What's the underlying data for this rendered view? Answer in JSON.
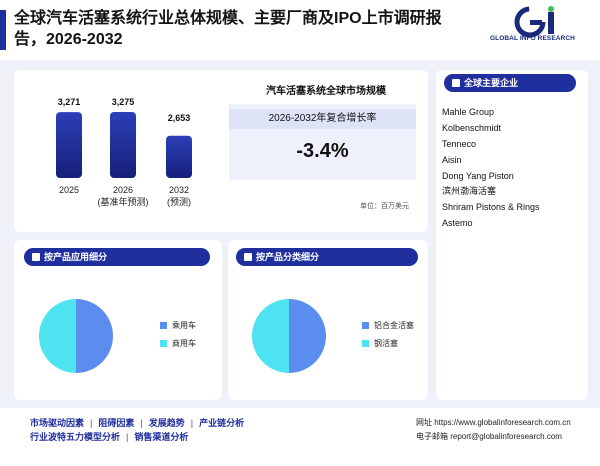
{
  "header": {
    "title": "全球汽车活塞系统行业总体规模、主要厂商及IPO上市调研报告，2026-2032",
    "logo_text": "GLOBAL INFO RESEARCH"
  },
  "market": {
    "title": "汽车活塞系统全球市场规模",
    "cagr_label": "2026-2032年复合增长率",
    "cagr_value": "-3.4%",
    "unit": "单位：百万美元"
  },
  "chart_data": [
    {
      "type": "bar",
      "categories": [
        "2025",
        "2026\n(基准年预测)",
        "2032\n(预测)"
      ],
      "values": [
        3271,
        3275,
        2653
      ],
      "value_labels": [
        "3,271",
        "3,275",
        "2,653"
      ],
      "colors": {
        "top": "#2c3fb8",
        "bottom": "#16207a"
      }
    },
    {
      "type": "pie",
      "title": "按产品应用细分",
      "series": [
        {
          "name": "乘用车",
          "value": 50,
          "color": "#5b8def"
        },
        {
          "name": "商用车",
          "value": 50,
          "color": "#4ee3f0"
        }
      ]
    },
    {
      "type": "pie",
      "title": "按产品分类细分",
      "series": [
        {
          "name": "铝合金活塞",
          "value": 50,
          "color": "#5b8def"
        },
        {
          "name": "钢活塞",
          "value": 50,
          "color": "#4ee3f0"
        }
      ]
    }
  ],
  "bar_labels": {
    "cat0": "2025",
    "cat1_line1": "2026",
    "cat1_line2": "(基准年预测)",
    "cat2_line1": "2032",
    "cat2_line2": "(预测)",
    "val0": "3,271",
    "val1": "3,275",
    "val2": "2,653"
  },
  "companies": {
    "title": "全球主要企业",
    "items": [
      "Mahle Group",
      "Kolbenschmidt",
      "Tenneco",
      "Aisin",
      "Dong Yang Piston",
      "滨州渤海活塞",
      "Shriram Pistons & Rings",
      "Astemo"
    ]
  },
  "segments": {
    "application_title": "按产品应用细分",
    "application_legend": [
      "乘用车",
      "商用车"
    ],
    "type_title": "按产品分类细分",
    "type_legend": [
      "铝合金活塞",
      "钢活塞"
    ]
  },
  "footer": {
    "links_row1": [
      "市场驱动因素",
      "阻碍因素",
      "发展趋势",
      "产业链分析"
    ],
    "links_row2": [
      "行业波特五力模型分析",
      "销售渠道分析"
    ],
    "website": "网址 https://www.globalinforesearch.com.cn",
    "email": "电子邮箱 report@globalinforesearch.com"
  },
  "colors": {
    "brand": "#1f2f9e",
    "pie_blue": "#5b8def",
    "pie_cyan": "#4ee3f0",
    "logo_green": "#3fbf5a"
  }
}
